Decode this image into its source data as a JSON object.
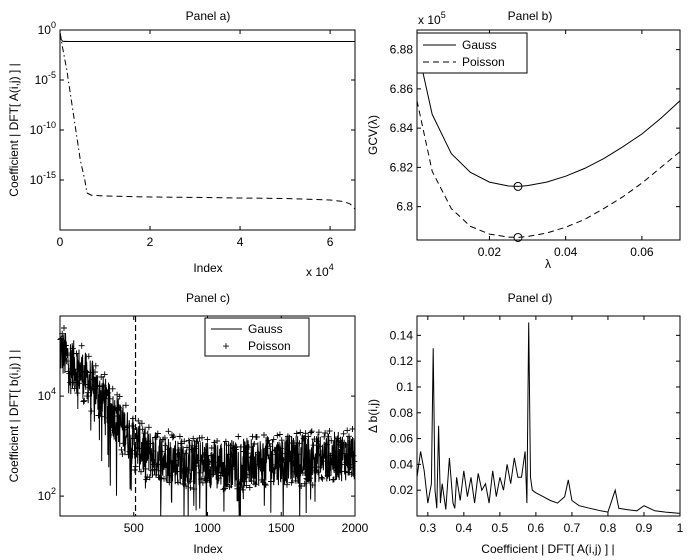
{
  "chart_data": [
    {
      "panel": "a",
      "type": "line",
      "title": "Panel a)",
      "xlabel": "Index",
      "ylabel": "Coefficient | DFT[ A(i,j) ] |",
      "yscale": "log",
      "xlim": [
        0,
        65536
      ],
      "ylim": [
        1e-20,
        1
      ],
      "xticks": [
        0,
        2,
        4,
        6
      ],
      "x_multiplier_label": "x 10",
      "x_multiplier_exp": "4",
      "yticks": [
        {
          "value": 1,
          "base": "10",
          "exp": "0"
        },
        {
          "value": 1e-05,
          "base": "10",
          "exp": "-5"
        },
        {
          "value": 1e-10,
          "base": "10",
          "exp": "-10"
        },
        {
          "value": 1e-15,
          "base": "10",
          "exp": "-15"
        }
      ],
      "series": [
        {
          "style": "solid",
          "x": [
            0,
            200,
            600,
            2000,
            65536
          ],
          "y": [
            0.5,
            0.12,
            0.075,
            0.07,
            0.07
          ]
        },
        {
          "style": "dashed",
          "x": [
            0,
            300,
            800,
            65536
          ],
          "y": [
            0.5,
            0.1,
            0.07,
            0.07
          ]
        },
        {
          "style": "dashdot",
          "x": [
            0,
            600,
            1500,
            2500,
            3500,
            4500,
            5500,
            6000
          ],
          "y": [
            0.5,
            0.015,
            0.0001,
            1e-07,
            1e-10,
            1e-13,
            1e-15,
            5e-17
          ]
        },
        {
          "style": "dashed",
          "x": [
            6000,
            7000,
            10000,
            20000,
            30000,
            40000,
            50000,
            55000,
            60000,
            63000,
            64500,
            65536
          ],
          "y": [
            5e-17,
            3e-17,
            2.5e-17,
            2e-17,
            1.8e-17,
            1.6e-17,
            1.4e-17,
            1.2e-17,
            1e-17,
            7e-18,
            4e-18,
            1.2e-18
          ]
        }
      ]
    },
    {
      "panel": "b",
      "type": "line",
      "title": "Panel b)",
      "xlabel": "λ",
      "ylabel": "GCV(λ)",
      "xlim": [
        0.001,
        0.07
      ],
      "ylim": [
        6.783,
        6.89
      ],
      "y_multiplier_label": "x 10",
      "y_multiplier_exp": "5",
      "xticks": [
        0.02,
        0.04,
        0.06
      ],
      "xtick_labels": [
        "0.02",
        "0.04",
        "0.06"
      ],
      "yticks": [
        6.8,
        6.82,
        6.84,
        6.86,
        6.88
      ],
      "ytick_labels": [
        "6.8",
        "6.82",
        "6.84",
        "6.86",
        "6.88"
      ],
      "legend": {
        "position": "top-left",
        "entries": [
          "Gauss",
          "Poisson"
        ]
      },
      "series": [
        {
          "name": "Gauss",
          "style": "solid",
          "x": [
            0.001,
            0.005,
            0.01,
            0.015,
            0.02,
            0.025,
            0.0275,
            0.03,
            0.035,
            0.04,
            0.045,
            0.05,
            0.055,
            0.06,
            0.065,
            0.07
          ],
          "y": [
            6.882,
            6.847,
            6.827,
            6.8175,
            6.8125,
            6.8105,
            6.8103,
            6.8107,
            6.8125,
            6.8155,
            6.8195,
            6.8245,
            6.8305,
            6.837,
            6.845,
            6.854
          ],
          "marker": {
            "x": 0.0275,
            "y": 6.8103
          }
        },
        {
          "name": "Poisson",
          "style": "dashed",
          "x": [
            0.001,
            0.005,
            0.01,
            0.015,
            0.02,
            0.025,
            0.0275,
            0.03,
            0.035,
            0.04,
            0.045,
            0.05,
            0.055,
            0.06,
            0.065,
            0.07
          ],
          "y": [
            6.854,
            6.818,
            6.799,
            6.79,
            6.786,
            6.7845,
            6.7843,
            6.7848,
            6.7865,
            6.7895,
            6.7935,
            6.799,
            6.805,
            6.812,
            6.82,
            6.828
          ],
          "marker": {
            "x": 0.0275,
            "y": 6.7843
          }
        }
      ]
    },
    {
      "panel": "c",
      "type": "line",
      "title": "Panel c)",
      "xlabel": "Index",
      "ylabel": "Coefficient |  DFT[ b(i,j) ] |",
      "yscale": "log",
      "xlim": [
        0,
        2000
      ],
      "ylim": [
        40,
        400000
      ],
      "xticks": [
        500,
        1000,
        1500,
        2000
      ],
      "yticks": [
        {
          "value": 100,
          "base": "10",
          "exp": "2"
        },
        {
          "value": 10000,
          "base": "10",
          "exp": "4"
        }
      ],
      "vertical_line_x": 512,
      "legend": {
        "position": "top-right",
        "entries": [
          "Gauss",
          "Poisson"
        ]
      },
      "series": [
        {
          "name": "Gauss",
          "style": "solid"
        },
        {
          "name": "Poisson",
          "style": "plus-markers"
        }
      ],
      "trend_envelope": {
        "x": [
          0,
          100,
          200,
          300,
          400,
          500,
          600,
          800,
          1000,
          1200,
          1400,
          1600,
          1800,
          2000
        ],
        "y": [
          80000,
          40000,
          20000,
          8000,
          3000,
          1200,
          700,
          500,
          450,
          450,
          500,
          550,
          600,
          650
        ]
      }
    },
    {
      "panel": "d",
      "type": "line",
      "title": "Panel d)",
      "xlabel": "Coefficient | DFT[ A(i,j) ] |",
      "ylabel": "Δ b(i,j)",
      "xlim": [
        0.27,
        1.0
      ],
      "ylim": [
        0.0,
        0.155
      ],
      "xticks": [
        0.3,
        0.4,
        0.5,
        0.6,
        0.7,
        0.8,
        0.9,
        1
      ],
      "xtick_labels": [
        "0.3",
        "0.4",
        "0.5",
        "0.6",
        "0.7",
        "0.8",
        "0.9",
        "1"
      ],
      "yticks": [
        0.02,
        0.04,
        0.06,
        0.08,
        0.1,
        0.12,
        0.14
      ],
      "ytick_labels": [
        "0.02",
        "0.04",
        "0.06",
        "0.08",
        "0.1",
        "0.12",
        "0.14"
      ],
      "series": [
        {
          "style": "solid",
          "x": [
            0.27,
            0.28,
            0.29,
            0.3,
            0.31,
            0.315,
            0.32,
            0.325,
            0.33,
            0.335,
            0.34,
            0.35,
            0.36,
            0.37,
            0.375,
            0.38,
            0.39,
            0.4,
            0.41,
            0.42,
            0.43,
            0.44,
            0.45,
            0.46,
            0.47,
            0.48,
            0.49,
            0.5,
            0.51,
            0.52,
            0.53,
            0.54,
            0.55,
            0.56,
            0.57,
            0.575,
            0.58,
            0.585,
            0.59,
            0.6,
            0.62,
            0.64,
            0.66,
            0.68,
            0.69,
            0.7,
            0.72,
            0.75,
            0.78,
            0.8,
            0.82,
            0.83,
            0.85,
            0.88,
            0.9,
            0.93,
            0.96,
            1.0
          ],
          "y": [
            0.03,
            0.05,
            0.035,
            0.01,
            0.025,
            0.13,
            0.02,
            0.006,
            0.07,
            0.01,
            0.025,
            0.005,
            0.045,
            0.01,
            0.006,
            0.03,
            0.012,
            0.035,
            0.015,
            0.03,
            0.01,
            0.033,
            0.02,
            0.025,
            0.01,
            0.035,
            0.015,
            0.03,
            0.02,
            0.04,
            0.025,
            0.045,
            0.03,
            0.03,
            0.05,
            0.01,
            0.15,
            0.03,
            0.02,
            0.018,
            0.015,
            0.012,
            0.01,
            0.015,
            0.028,
            0.012,
            0.008,
            0.006,
            0.004,
            0.003,
            0.02,
            0.006,
            0.005,
            0.004,
            0.008,
            0.004,
            0.003,
            0.002
          ]
        }
      ]
    }
  ]
}
